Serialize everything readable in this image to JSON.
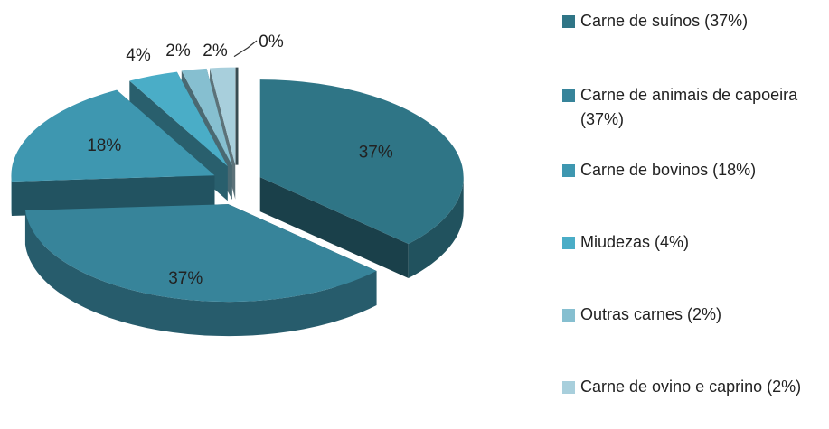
{
  "chart_data": {
    "type": "pie",
    "categories": [
      "Carne de suínos (37%)",
      "Carne de animais de capoeira (37%)",
      "Carne de bovinos (18%)",
      "Miudezas (4%)",
      "Outras carnes (2%)",
      "Carne de ovino e caprino (2%)",
      null
    ],
    "values": [
      37,
      37,
      18,
      4,
      2,
      2,
      0
    ],
    "value_labels": [
      "37%",
      "37%",
      "18%",
      "4%",
      "2%",
      "2%",
      "0%"
    ],
    "colors": [
      "#2f7586",
      "#37849a",
      "#3e97b0",
      "#4aadc7",
      "#86bfd0",
      "#a8cfdc",
      "#5f7f88"
    ],
    "legend": "right"
  }
}
